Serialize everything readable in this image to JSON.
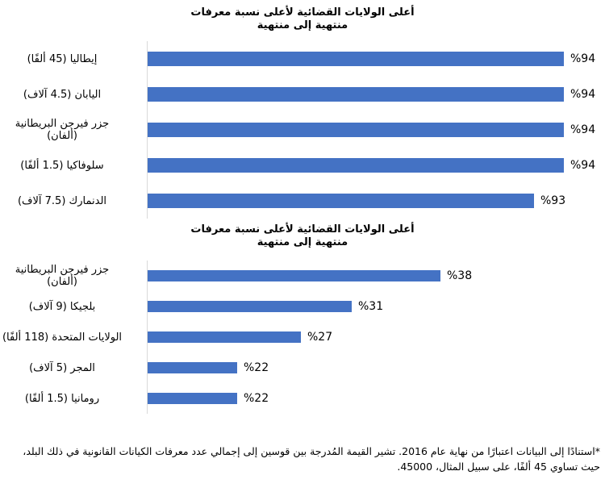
{
  "page": {
    "background": "#ffffff",
    "bar_color": "#4472C4",
    "axis_color": "#D9D9D9",
    "text_color": "#000000"
  },
  "chart_data": [
    {
      "type": "bar",
      "orientation": "horizontal",
      "title_line1": "أعلى الولايات القضائية لأعلى نسبة معرفات",
      "title_line2": "منتهية إلى منتهية",
      "categories": [
        "إيطاليا (45 ألفًا)",
        "اليابان (4.5 آلاف)",
        "جزر فيرجن البريطانية (ألفان)",
        "سلوفاكيا (1.5 ألفًا)",
        "الدنمارك (7.5 آلاف)"
      ],
      "values": [
        94,
        94,
        94,
        94,
        93
      ],
      "value_labels": [
        "%94",
        "%94",
        "%94",
        "%94",
        "%93"
      ],
      "unit": "percent",
      "xlim": [
        80,
        95
      ],
      "grid": false,
      "legend": false,
      "bar_color": "#4472C4"
    },
    {
      "type": "bar",
      "orientation": "horizontal",
      "title_line1": "أعلى الولايات القضائية لأعلى نسبة معرفات",
      "title_line2": "منتهية إلى منتهية",
      "categories": [
        "جزر فيرجن البريطانية (ألفان)",
        "بلجيكا (9 آلاف)",
        "الولايات المتحدة (118 ألفًا)",
        "المجر (5 آلاف)",
        "رومانيا (1.5 ألفًا)"
      ],
      "values": [
        38,
        31,
        27,
        22,
        22
      ],
      "value_labels": [
        "%38",
        "%31",
        "%27",
        "%22",
        "%22"
      ],
      "unit": "percent",
      "xlim": [
        15,
        50
      ],
      "grid": false,
      "legend": false,
      "bar_color": "#4472C4"
    }
  ],
  "footnote": "*استنادًا إلى البيانات اعتبارًا من نهاية عام 2016. تشير القيمة المُدرجة بين قوسين إلى إجمالي عدد معرفات الكيانات القانونية في ذلك البلد، حيث تساوي 45 ألفًا، على سبيل المثال، 45000."
}
